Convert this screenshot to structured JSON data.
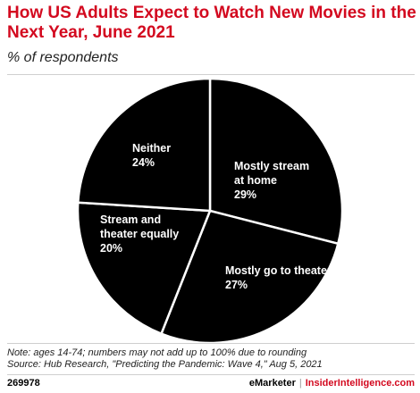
{
  "title": "How US Adults Expect to Watch New Movies in the Next Year, June 2021",
  "subtitle": "% of respondents",
  "notes": [
    "Note: ages 14-74; numbers may not add up to 100% due to rounding",
    "Source: Hub Research, \"Predicting the Pandemic: Wave 4,\" Aug 5, 2021"
  ],
  "footer": {
    "chart_id": "269978",
    "brand": "eMarketer",
    "separator": "|",
    "site": "InsiderIntelligence.com"
  },
  "colors": {
    "title": "#d3091f",
    "slice_fill": "#000000",
    "slice_border": "#ffffff"
  },
  "chart_data": {
    "type": "pie",
    "title": "How US Adults Expect to Watch New Movies in the Next Year, June 2021",
    "subtitle": "% of respondents",
    "slices": [
      {
        "label": "Mostly stream at home",
        "value": 29,
        "value_label": "29%"
      },
      {
        "label": "Mostly go to theater",
        "value": 27,
        "value_label": "27%"
      },
      {
        "label": "Stream and theater equally",
        "value": 20,
        "value_label": "20%"
      },
      {
        "label": "Neither",
        "value": 24,
        "value_label": "24%"
      }
    ]
  }
}
